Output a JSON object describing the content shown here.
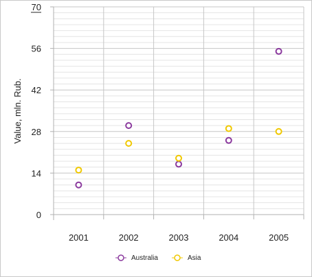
{
  "chart_data": {
    "type": "scatter",
    "categories": [
      "2001",
      "2002",
      "2003",
      "2004",
      "2005"
    ],
    "ylabel": "Value, mln. Rub.",
    "ylim": [
      0,
      70
    ],
    "yticks": [
      0,
      14,
      28,
      42,
      56,
      70
    ],
    "grid": true,
    "legend_position": "bottom",
    "series": [
      {
        "name": "Australia",
        "color": "#8b3a9e",
        "values": [
          10,
          30,
          17,
          25,
          55
        ]
      },
      {
        "name": "Asia",
        "color": "#f0c800",
        "values": [
          15,
          24,
          19,
          29,
          28
        ]
      }
    ]
  }
}
